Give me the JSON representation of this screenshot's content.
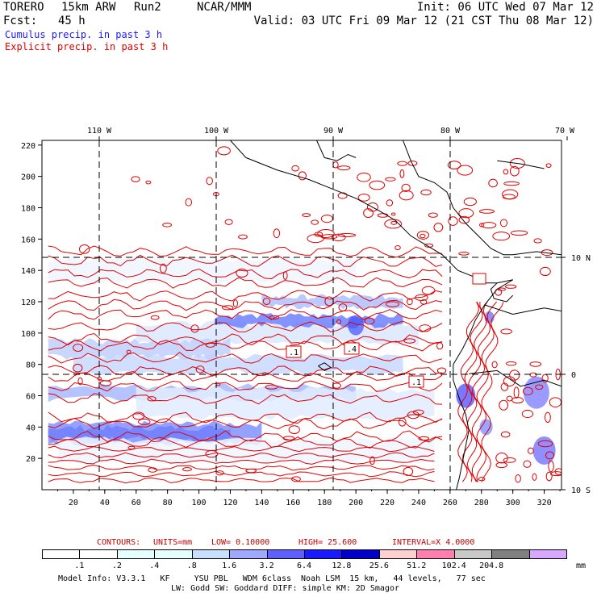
{
  "header": {
    "model": "TORERO",
    "resolution": "15km ARW",
    "run": "Run2",
    "org": "NCAR/MMM",
    "init": "Init: 06 UTC Wed 07 Mar 12",
    "fcst_label": "Fcst:",
    "fcst_value": "45 h",
    "valid": "Valid: 03 UTC Fri 09 Mar 12 (21 CST Thu 08 Mar 12)"
  },
  "legend_lines": {
    "cumulus": "Cumulus precip. in past 3 h",
    "explicit": "Explicit precip. in past 3 h"
  },
  "colors": {
    "cumulus": "#1a1aff",
    "explicit": "#e00000",
    "grid": "#000000"
  },
  "top_axis": [
    "110 W",
    "100 W",
    "90 W",
    "80 W",
    "70 W"
  ],
  "right_axis": [
    "10 N",
    "0",
    "10 S"
  ],
  "left_axis": [
    "220",
    "200",
    "180",
    "160",
    "140",
    "120",
    "100",
    "80",
    "60",
    "40",
    "20"
  ],
  "bottom_axis": [
    "20",
    "40",
    "60",
    "80",
    "100",
    "120",
    "140",
    "160",
    "180",
    "200",
    "220",
    "240",
    "260",
    "280",
    "300",
    "320"
  ],
  "boxes": [
    ".1",
    ".4",
    ".1"
  ],
  "contour_info": {
    "contours": "CONTOURS:",
    "units": "UNITS=mm",
    "low": "LOW= 0.10000",
    "high": "HIGH= 25.600",
    "interval": "INTERVAL=X 4.0000"
  },
  "scale": {
    "labels": [
      ".1",
      ".2",
      ".4",
      ".8",
      "1.6",
      "3.2",
      "6.4",
      "12.8",
      "25.6",
      "51.2",
      "102.4",
      "204.8"
    ],
    "unit": "mm",
    "colors": [
      "#ffffff",
      "#ffffff",
      "#e6ffff",
      "#e6ffff",
      "#c8e0ff",
      "#a0a8ff",
      "#6060ff",
      "#1a1aff",
      "#0000c8",
      "#ffd0d0",
      "#ff80b0",
      "#c8c8c8",
      "#808080",
      "#d8a8ff"
    ]
  },
  "footer": {
    "line1": "Model Info: V3.3.1   KF     YSU PBL   WDM 6class  Noah LSM  15 km,   44 levels,   77 sec",
    "line2": "LW: Godd SW: Goddard DIFF: simple KM: 2D Smagor"
  }
}
